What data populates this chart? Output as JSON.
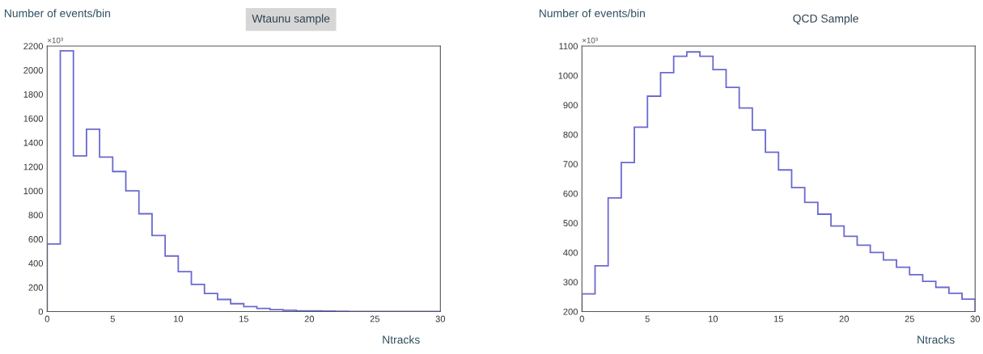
{
  "chart_data": [
    {
      "type": "histogram",
      "title": "Wtaunu sample",
      "ylabel": "Number of events/bin",
      "xlabel": "Ntracks",
      "annotations": [
        "×10³"
      ],
      "color": "#6a6ad0",
      "bins": [
        0,
        1,
        2,
        3,
        4,
        5,
        6,
        7,
        8,
        9,
        10,
        11,
        12,
        13,
        14,
        15,
        16,
        17,
        18,
        19,
        20,
        21,
        22,
        23,
        24,
        25,
        26,
        27,
        28,
        29,
        30
      ],
      "values": [
        560,
        2160,
        1290,
        1510,
        1280,
        1160,
        1000,
        810,
        630,
        460,
        330,
        225,
        150,
        100,
        65,
        40,
        25,
        15,
        10,
        5,
        5,
        3,
        2,
        1,
        1,
        0,
        0,
        0,
        0,
        0
      ],
      "xlim": [
        0,
        30
      ],
      "xticks": [
        0,
        5,
        10,
        15,
        20,
        25,
        30
      ],
      "ylim": [
        0,
        2200
      ],
      "yticks": [
        0,
        200,
        400,
        600,
        800,
        1000,
        1200,
        1400,
        1600,
        1800,
        2000,
        2200
      ],
      "grid": false
    },
    {
      "type": "histogram",
      "title": "QCD Sample",
      "ylabel": "Number of events/bin",
      "xlabel": "Ntracks",
      "annotations": [
        "×10³"
      ],
      "color": "#6a6ad0",
      "bins": [
        0,
        1,
        2,
        3,
        4,
        5,
        6,
        7,
        8,
        9,
        10,
        11,
        12,
        13,
        14,
        15,
        16,
        17,
        18,
        19,
        20,
        21,
        22,
        23,
        24,
        25,
        26,
        27,
        28,
        29,
        30
      ],
      "values": [
        260,
        355,
        585,
        705,
        825,
        930,
        1010,
        1065,
        1080,
        1065,
        1020,
        960,
        890,
        815,
        740,
        680,
        620,
        570,
        530,
        490,
        455,
        425,
        400,
        375,
        350,
        325,
        302,
        282,
        262,
        242
      ],
      "xlim": [
        0,
        30
      ],
      "xticks": [
        0,
        5,
        10,
        15,
        20,
        25,
        30
      ],
      "ylim": [
        200,
        1100
      ],
      "yticks": [
        200,
        300,
        400,
        500,
        600,
        700,
        800,
        900,
        1000,
        1100
      ],
      "grid": false
    }
  ]
}
